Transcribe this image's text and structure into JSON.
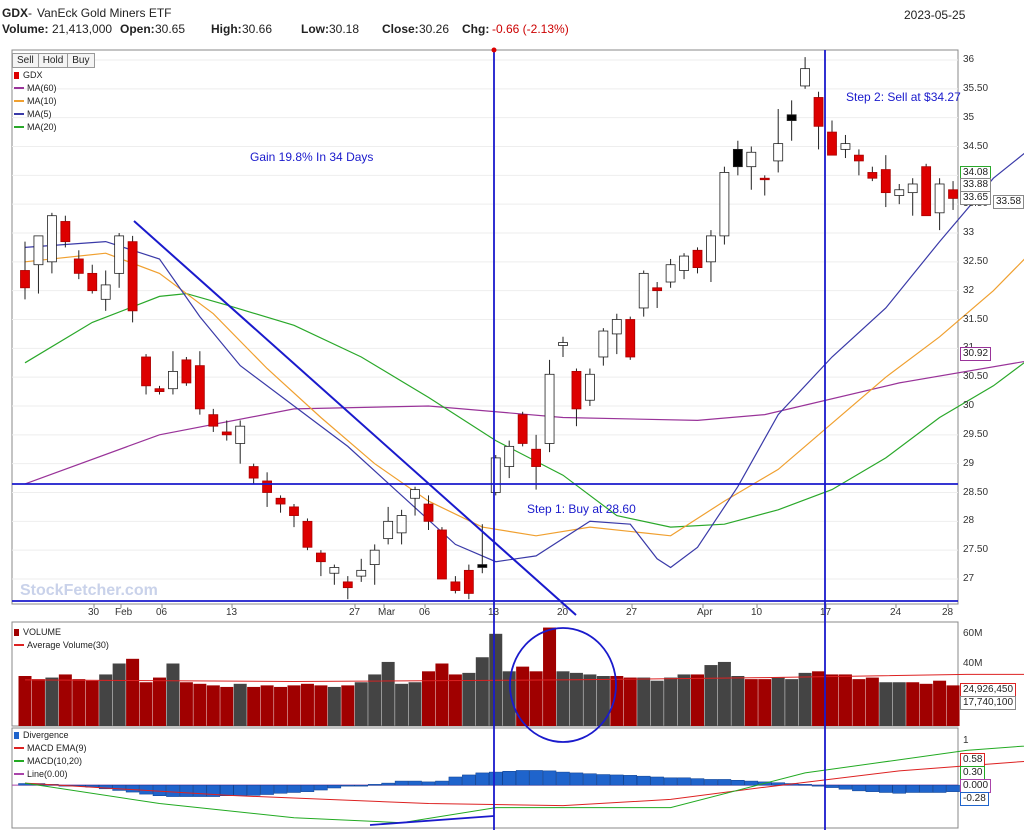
{
  "header": {
    "symbol": "GDX",
    "name_sep": " - ",
    "name": "VanEck Gold Miners ETF",
    "date": "2023-05-25",
    "volume_label": "Volume:",
    "volume_value": "21,413,000",
    "open_label": "Open:",
    "open_value": "30.65",
    "high_label": "High:",
    "high_value": "30.66",
    "low_label": "Low:",
    "low_value": "30.18",
    "close_label": "Close:",
    "close_value": "30.26",
    "chg_label": "Chg:",
    "chg_value": "-0.66 (-2.13%)"
  },
  "buttons": {
    "sell": "Sell",
    "hold": "Hold",
    "buy": "Buy"
  },
  "watermark": "StockFetcher.com",
  "annotations": {
    "gain": "Gain 19.8% In 34 Days",
    "buy": "Step 1: Buy at 28.60",
    "sell": "Step 2: Sell at $34.27"
  },
  "colors": {
    "up_body": "#ffffff",
    "down_body": "#dd0000",
    "black_body": "#000000",
    "ma60": "#993399",
    "ma10": "#f0a030",
    "ma5": "#3a3aa8",
    "ma20": "#2aa82a",
    "vol_down": "#a00000",
    "vol_up": "#444444",
    "avg_vol": "#dd2222",
    "macd_bar": "#1f64cc",
    "macd_ema": "#dd2222",
    "macd_line": "#22aa22",
    "zero_line": "#aa44aa",
    "annotation": "#1a1acc"
  },
  "legends": {
    "price": [
      "GDX",
      "MA(60)",
      "MA(10)",
      "MA(5)",
      "MA(20)"
    ],
    "volume": [
      "VOLUME",
      "Average Volume(30)"
    ],
    "macd": [
      "Divergence",
      "MACD EMA(9)",
      "MACD(10,20)",
      "Line(0.00)"
    ]
  },
  "price_axis_labels": [
    "36",
    "35.50",
    "35",
    "34.50",
    "34",
    "33.50",
    "33",
    "32.50",
    "32",
    "31.50",
    "31",
    "30.50",
    "30",
    "29.50",
    "29",
    "28.50",
    "28",
    "27.50",
    "27"
  ],
  "price_tags": [
    "34.08",
    "33.88",
    "33.65",
    "33.58",
    "30.92"
  ],
  "volume_axis_labels": [
    "60M",
    "40M"
  ],
  "volume_tags": [
    "24,926,450",
    "17,740,100"
  ],
  "macd_axis_labels": [
    "1"
  ],
  "macd_tags": [
    "0.58",
    "0.30",
    "0.000",
    "-0.28"
  ],
  "chart_data": {
    "type": "candlestick",
    "symbol": "GDX",
    "date_ticks": [
      "30",
      "Feb",
      "06",
      "13",
      "27",
      "Mar",
      "06",
      "13",
      "20",
      "27",
      "Apr",
      "10",
      "17",
      "24",
      "28"
    ],
    "ylim": [
      26.55,
      36.2
    ],
    "candles": [
      {
        "o": 32.35,
        "h": 32.85,
        "l": 31.85,
        "c": 32.05,
        "k": "d"
      },
      {
        "o": 32.45,
        "h": 32.95,
        "l": 31.95,
        "c": 32.95,
        "k": "u"
      },
      {
        "o": 32.5,
        "h": 33.35,
        "l": 32.3,
        "c": 33.3,
        "k": "u"
      },
      {
        "o": 33.2,
        "h": 33.3,
        "l": 32.75,
        "c": 32.85,
        "k": "d"
      },
      {
        "o": 32.55,
        "h": 32.7,
        "l": 32.2,
        "c": 32.3,
        "k": "d"
      },
      {
        "o": 32.3,
        "h": 32.45,
        "l": 31.95,
        "c": 32.0,
        "k": "d"
      },
      {
        "o": 31.85,
        "h": 32.35,
        "l": 31.65,
        "c": 32.1,
        "k": "u"
      },
      {
        "o": 32.3,
        "h": 33.0,
        "l": 32.05,
        "c": 32.95,
        "k": "u"
      },
      {
        "o": 32.85,
        "h": 32.95,
        "l": 31.45,
        "c": 31.65,
        "k": "d"
      },
      {
        "o": 30.85,
        "h": 30.9,
        "l": 30.2,
        "c": 30.35,
        "k": "d"
      },
      {
        "o": 30.3,
        "h": 30.35,
        "l": 30.2,
        "c": 30.25,
        "k": "d"
      },
      {
        "o": 30.3,
        "h": 30.95,
        "l": 30.2,
        "c": 30.6,
        "k": "u"
      },
      {
        "o": 30.8,
        "h": 30.85,
        "l": 30.35,
        "c": 30.4,
        "k": "d"
      },
      {
        "o": 30.7,
        "h": 30.95,
        "l": 29.85,
        "c": 29.95,
        "k": "d"
      },
      {
        "o": 29.85,
        "h": 29.95,
        "l": 29.55,
        "c": 29.65,
        "k": "d"
      },
      {
        "o": 29.55,
        "h": 29.75,
        "l": 29.4,
        "c": 29.5,
        "k": "d"
      },
      {
        "o": 29.35,
        "h": 29.75,
        "l": 29.0,
        "c": 29.65,
        "k": "u"
      },
      {
        "o": 28.95,
        "h": 29.0,
        "l": 28.65,
        "c": 28.75,
        "k": "d"
      },
      {
        "o": 28.7,
        "h": 28.85,
        "l": 28.25,
        "c": 28.5,
        "k": "d"
      },
      {
        "o": 28.4,
        "h": 28.45,
        "l": 28.15,
        "c": 28.3,
        "k": "d"
      },
      {
        "o": 28.25,
        "h": 28.3,
        "l": 27.9,
        "c": 28.1,
        "k": "d"
      },
      {
        "o": 28.0,
        "h": 28.05,
        "l": 27.5,
        "c": 27.55,
        "k": "d"
      },
      {
        "o": 27.45,
        "h": 27.5,
        "l": 27.05,
        "c": 27.3,
        "k": "d"
      },
      {
        "o": 27.1,
        "h": 27.25,
        "l": 26.9,
        "c": 27.2,
        "k": "u"
      },
      {
        "o": 26.95,
        "h": 27.05,
        "l": 26.65,
        "c": 26.85,
        "k": "d"
      },
      {
        "o": 27.05,
        "h": 27.35,
        "l": 26.95,
        "c": 27.15,
        "k": "u"
      },
      {
        "o": 27.25,
        "h": 27.6,
        "l": 26.9,
        "c": 27.5,
        "k": "u"
      },
      {
        "o": 27.7,
        "h": 28.25,
        "l": 27.6,
        "c": 28.0,
        "k": "u"
      },
      {
        "o": 27.8,
        "h": 28.2,
        "l": 27.6,
        "c": 28.1,
        "k": "u"
      },
      {
        "o": 28.4,
        "h": 28.6,
        "l": 28.1,
        "c": 28.55,
        "k": "u"
      },
      {
        "o": 28.3,
        "h": 28.45,
        "l": 27.85,
        "c": 28.0,
        "k": "d"
      },
      {
        "o": 27.85,
        "h": 27.9,
        "l": 27.0,
        "c": 27.0,
        "k": "d"
      },
      {
        "o": 26.95,
        "h": 27.05,
        "l": 26.75,
        "c": 26.8,
        "k": "d"
      },
      {
        "o": 27.15,
        "h": 27.25,
        "l": 26.65,
        "c": 26.75,
        "k": "d"
      },
      {
        "o": 27.2,
        "h": 27.95,
        "l": 27.1,
        "c": 27.25,
        "k": "b"
      },
      {
        "o": 28.5,
        "h": 29.15,
        "l": 28.45,
        "c": 29.1,
        "k": "u"
      },
      {
        "o": 28.95,
        "h": 29.4,
        "l": 28.75,
        "c": 29.3,
        "k": "u"
      },
      {
        "o": 29.85,
        "h": 29.9,
        "l": 29.3,
        "c": 29.35,
        "k": "d"
      },
      {
        "o": 29.25,
        "h": 29.5,
        "l": 28.55,
        "c": 28.95,
        "k": "d"
      },
      {
        "o": 29.35,
        "h": 30.8,
        "l": 29.2,
        "c": 30.55,
        "k": "u"
      },
      {
        "o": 31.05,
        "h": 31.2,
        "l": 30.85,
        "c": 31.1,
        "k": "u"
      },
      {
        "o": 30.6,
        "h": 30.65,
        "l": 29.65,
        "c": 29.95,
        "k": "d"
      },
      {
        "o": 30.1,
        "h": 30.65,
        "l": 30.0,
        "c": 30.55,
        "k": "u"
      },
      {
        "o": 30.85,
        "h": 31.35,
        "l": 30.7,
        "c": 31.3,
        "k": "u"
      },
      {
        "o": 31.25,
        "h": 31.6,
        "l": 30.9,
        "c": 31.5,
        "k": "u"
      },
      {
        "o": 31.5,
        "h": 31.55,
        "l": 30.8,
        "c": 30.85,
        "k": "d"
      },
      {
        "o": 31.7,
        "h": 32.35,
        "l": 31.55,
        "c": 32.3,
        "k": "u"
      },
      {
        "o": 32.05,
        "h": 32.15,
        "l": 31.7,
        "c": 32.0,
        "k": "d"
      },
      {
        "o": 32.15,
        "h": 32.55,
        "l": 32.05,
        "c": 32.45,
        "k": "u"
      },
      {
        "o": 32.35,
        "h": 32.65,
        "l": 32.2,
        "c": 32.6,
        "k": "u"
      },
      {
        "o": 32.7,
        "h": 32.75,
        "l": 32.3,
        "c": 32.4,
        "k": "d"
      },
      {
        "o": 32.5,
        "h": 33.05,
        "l": 32.15,
        "c": 32.95,
        "k": "u"
      },
      {
        "o": 32.95,
        "h": 34.15,
        "l": 32.8,
        "c": 34.05,
        "k": "u"
      },
      {
        "o": 34.15,
        "h": 34.6,
        "l": 34.0,
        "c": 34.45,
        "k": "b"
      },
      {
        "o": 34.15,
        "h": 34.5,
        "l": 33.75,
        "c": 34.4,
        "k": "u"
      },
      {
        "o": 33.95,
        "h": 34.0,
        "l": 33.65,
        "c": 33.95,
        "k": "d"
      },
      {
        "o": 34.25,
        "h": 35.15,
        "l": 34.05,
        "c": 34.55,
        "k": "u"
      },
      {
        "o": 34.95,
        "h": 35.3,
        "l": 34.6,
        "c": 35.05,
        "k": "b"
      },
      {
        "o": 35.55,
        "h": 36.05,
        "l": 35.5,
        "c": 35.85,
        "k": "u"
      },
      {
        "o": 35.35,
        "h": 35.45,
        "l": 34.45,
        "c": 34.85,
        "k": "d"
      },
      {
        "o": 34.75,
        "h": 34.95,
        "l": 34.35,
        "c": 34.35,
        "k": "d"
      },
      {
        "o": 34.45,
        "h": 34.7,
        "l": 34.3,
        "c": 34.55,
        "k": "u"
      },
      {
        "o": 34.35,
        "h": 34.45,
        "l": 34.0,
        "c": 34.25,
        "k": "d"
      },
      {
        "o": 34.05,
        "h": 34.15,
        "l": 33.9,
        "c": 33.95,
        "k": "d"
      },
      {
        "o": 34.1,
        "h": 34.35,
        "l": 33.45,
        "c": 33.7,
        "k": "d"
      },
      {
        "o": 33.65,
        "h": 33.85,
        "l": 33.5,
        "c": 33.75,
        "k": "u"
      },
      {
        "o": 33.7,
        "h": 33.95,
        "l": 33.3,
        "c": 33.85,
        "k": "u"
      },
      {
        "o": 34.15,
        "h": 34.2,
        "l": 33.3,
        "c": 33.3,
        "k": "d"
      },
      {
        "o": 33.35,
        "h": 33.95,
        "l": 33.05,
        "c": 33.85,
        "k": "u"
      },
      {
        "o": 33.75,
        "h": 33.9,
        "l": 33.4,
        "c": 33.6,
        "k": "d"
      }
    ],
    "ma60": [
      [
        0,
        28.65
      ],
      [
        10,
        29.5
      ],
      [
        20,
        29.95
      ],
      [
        30,
        30.0
      ],
      [
        40,
        29.8
      ],
      [
        50,
        29.75
      ],
      [
        55,
        29.85
      ],
      [
        65,
        30.4
      ],
      [
        75,
        30.8
      ],
      [
        85,
        31.0
      ],
      [
        98,
        31.2
      ]
    ],
    "ma20": [
      [
        0,
        30.75
      ],
      [
        5,
        31.45
      ],
      [
        10,
        31.9
      ],
      [
        12,
        31.95
      ],
      [
        15,
        31.75
      ],
      [
        20,
        31.4
      ],
      [
        25,
        30.85
      ],
      [
        30,
        30.15
      ],
      [
        35,
        29.4
      ],
      [
        40,
        28.8
      ],
      [
        44,
        28.1
      ],
      [
        48,
        27.9
      ],
      [
        52,
        27.95
      ],
      [
        56,
        28.2
      ],
      [
        60,
        28.55
      ],
      [
        64,
        29.1
      ],
      [
        68,
        29.8
      ],
      [
        72,
        30.35
      ],
      [
        76,
        31.05
      ],
      [
        82,
        32.15
      ],
      [
        86,
        32.85
      ],
      [
        90,
        33.45
      ],
      [
        94,
        33.8
      ],
      [
        98,
        34.05
      ]
    ],
    "ma10": [
      [
        0,
        32.5
      ],
      [
        6,
        32.65
      ],
      [
        10,
        32.3
      ],
      [
        14,
        31.6
      ],
      [
        18,
        30.65
      ],
      [
        22,
        29.8
      ],
      [
        26,
        29.0
      ],
      [
        30,
        28.35
      ],
      [
        34,
        27.9
      ],
      [
        38,
        27.75
      ],
      [
        42,
        27.9
      ],
      [
        46,
        27.8
      ],
      [
        48,
        27.75
      ],
      [
        52,
        28.35
      ],
      [
        56,
        28.9
      ],
      [
        60,
        29.7
      ],
      [
        64,
        30.5
      ],
      [
        68,
        31.2
      ],
      [
        72,
        32.0
      ],
      [
        76,
        32.95
      ],
      [
        80,
        33.95
      ],
      [
        84,
        34.55
      ],
      [
        86,
        34.65
      ],
      [
        90,
        34.45
      ],
      [
        94,
        34.15
      ],
      [
        98,
        34.0
      ]
    ],
    "ma5": [
      [
        0,
        32.75
      ],
      [
        6,
        32.85
      ],
      [
        10,
        32.55
      ],
      [
        13,
        31.55
      ],
      [
        16,
        30.7
      ],
      [
        20,
        30.0
      ],
      [
        24,
        29.3
      ],
      [
        28,
        28.45
      ],
      [
        32,
        27.6
      ],
      [
        35,
        27.3
      ],
      [
        38,
        27.4
      ],
      [
        42,
        28.0
      ],
      [
        45,
        27.95
      ],
      [
        47,
        27.35
      ],
      [
        48,
        27.2
      ],
      [
        50,
        27.55
      ],
      [
        53,
        28.6
      ],
      [
        56,
        29.85
      ],
      [
        60,
        30.85
      ],
      [
        64,
        31.7
      ],
      [
        68,
        32.85
      ],
      [
        72,
        33.95
      ],
      [
        76,
        34.7
      ],
      [
        78,
        34.85
      ],
      [
        82,
        34.85
      ],
      [
        86,
        34.55
      ],
      [
        90,
        34.05
      ],
      [
        94,
        33.6
      ],
      [
        98,
        33.65
      ]
    ],
    "volume": [
      32,
      30,
      31,
      33,
      30,
      29,
      33,
      40,
      43,
      28,
      31,
      40,
      28,
      27,
      26,
      25,
      27,
      25,
      26,
      25,
      26,
      27,
      26,
      25,
      26,
      28,
      33,
      41,
      27,
      28,
      35,
      40,
      33,
      34,
      44,
      59,
      35,
      38,
      35,
      63,
      35,
      34,
      33,
      32,
      32,
      31,
      31,
      29,
      31,
      33,
      33,
      39,
      41,
      32,
      30,
      30,
      31,
      30,
      34,
      35,
      33,
      33,
      30,
      31,
      28,
      28,
      28,
      27,
      29,
      26
    ],
    "volume_direction": "dduddduuddduddddudddddduduuuuuddduuuuddduuuudduuuuduuudduuuddddduuddd",
    "avg_volume": [
      [
        0,
        29.5
      ],
      [
        20,
        28.5
      ],
      [
        40,
        29.5
      ],
      [
        55,
        31.0
      ],
      [
        70,
        33.0
      ],
      [
        85,
        33.0
      ],
      [
        98,
        32.5
      ]
    ],
    "macd_hist": [
      0.04,
      0.04,
      0.02,
      0.0,
      -0.02,
      -0.05,
      -0.09,
      -0.13,
      -0.17,
      -0.22,
      -0.26,
      -0.28,
      -0.28,
      -0.28,
      -0.28,
      -0.26,
      -0.26,
      -0.25,
      -0.23,
      -0.2,
      -0.18,
      -0.16,
      -0.12,
      -0.07,
      -0.02,
      0.0,
      0.02,
      0.05,
      0.1,
      0.1,
      0.08,
      0.1,
      0.2,
      0.25,
      0.3,
      0.32,
      0.34,
      0.36,
      0.36,
      0.35,
      0.32,
      0.3,
      0.28,
      0.26,
      0.25,
      0.24,
      0.22,
      0.2,
      0.18,
      0.18,
      0.16,
      0.14,
      0.14,
      0.12,
      0.1,
      0.08,
      0.06,
      0.04,
      0.02,
      -0.02,
      -0.06,
      -0.1,
      -0.14,
      -0.16,
      -0.18,
      -0.2,
      -0.18,
      -0.18,
      -0.18,
      -0.16
    ],
    "macd_ema": [
      [
        0,
        0.05
      ],
      [
        15,
        -0.25
      ],
      [
        30,
        -0.45
      ],
      [
        40,
        -0.5
      ],
      [
        48,
        -0.35
      ],
      [
        55,
        -0.05
      ],
      [
        65,
        0.35
      ],
      [
        75,
        0.6
      ],
      [
        85,
        0.95
      ],
      [
        90,
        0.85
      ],
      [
        98,
        0.58
      ]
    ],
    "macd_line": [
      [
        0,
        0.05
      ],
      [
        10,
        -0.45
      ],
      [
        20,
        -0.8
      ],
      [
        28,
        -0.92
      ],
      [
        35,
        -0.55
      ],
      [
        48,
        -0.55
      ],
      [
        58,
        0.3
      ],
      [
        70,
        0.85
      ],
      [
        78,
        1.05
      ],
      [
        85,
        1.15
      ],
      [
        90,
        0.95
      ],
      [
        98,
        0.3
      ]
    ],
    "macd_ylim": [
      -1.05,
      1.4
    ]
  }
}
